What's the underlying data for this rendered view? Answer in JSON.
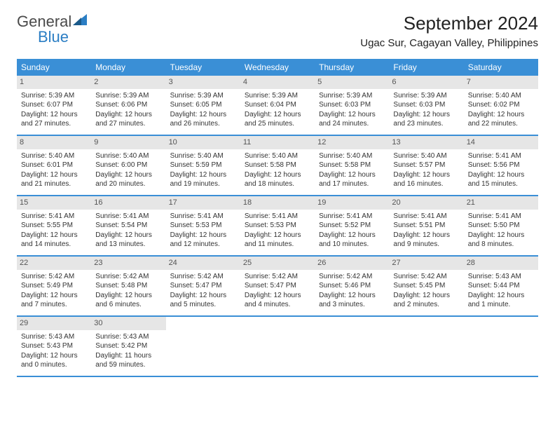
{
  "brand": {
    "text1": "General",
    "text2": "Blue"
  },
  "title": "September 2024",
  "location": "Ugac Sur, Cagayan Valley, Philippines",
  "colors": {
    "header_bg": "#3a8fd6",
    "header_text": "#ffffff",
    "daynum_bg": "#e6e6e6",
    "row_border": "#3a8fd6",
    "brand_gray": "#4a4a4a",
    "brand_blue": "#2b7ec4"
  },
  "day_names": [
    "Sunday",
    "Monday",
    "Tuesday",
    "Wednesday",
    "Thursday",
    "Friday",
    "Saturday"
  ],
  "weeks": [
    [
      {
        "num": "1",
        "sunrise": "Sunrise: 5:39 AM",
        "sunset": "Sunset: 6:07 PM",
        "d1": "Daylight: 12 hours",
        "d2": "and 27 minutes."
      },
      {
        "num": "2",
        "sunrise": "Sunrise: 5:39 AM",
        "sunset": "Sunset: 6:06 PM",
        "d1": "Daylight: 12 hours",
        "d2": "and 27 minutes."
      },
      {
        "num": "3",
        "sunrise": "Sunrise: 5:39 AM",
        "sunset": "Sunset: 6:05 PM",
        "d1": "Daylight: 12 hours",
        "d2": "and 26 minutes."
      },
      {
        "num": "4",
        "sunrise": "Sunrise: 5:39 AM",
        "sunset": "Sunset: 6:04 PM",
        "d1": "Daylight: 12 hours",
        "d2": "and 25 minutes."
      },
      {
        "num": "5",
        "sunrise": "Sunrise: 5:39 AM",
        "sunset": "Sunset: 6:03 PM",
        "d1": "Daylight: 12 hours",
        "d2": "and 24 minutes."
      },
      {
        "num": "6",
        "sunrise": "Sunrise: 5:39 AM",
        "sunset": "Sunset: 6:03 PM",
        "d1": "Daylight: 12 hours",
        "d2": "and 23 minutes."
      },
      {
        "num": "7",
        "sunrise": "Sunrise: 5:40 AM",
        "sunset": "Sunset: 6:02 PM",
        "d1": "Daylight: 12 hours",
        "d2": "and 22 minutes."
      }
    ],
    [
      {
        "num": "8",
        "sunrise": "Sunrise: 5:40 AM",
        "sunset": "Sunset: 6:01 PM",
        "d1": "Daylight: 12 hours",
        "d2": "and 21 minutes."
      },
      {
        "num": "9",
        "sunrise": "Sunrise: 5:40 AM",
        "sunset": "Sunset: 6:00 PM",
        "d1": "Daylight: 12 hours",
        "d2": "and 20 minutes."
      },
      {
        "num": "10",
        "sunrise": "Sunrise: 5:40 AM",
        "sunset": "Sunset: 5:59 PM",
        "d1": "Daylight: 12 hours",
        "d2": "and 19 minutes."
      },
      {
        "num": "11",
        "sunrise": "Sunrise: 5:40 AM",
        "sunset": "Sunset: 5:58 PM",
        "d1": "Daylight: 12 hours",
        "d2": "and 18 minutes."
      },
      {
        "num": "12",
        "sunrise": "Sunrise: 5:40 AM",
        "sunset": "Sunset: 5:58 PM",
        "d1": "Daylight: 12 hours",
        "d2": "and 17 minutes."
      },
      {
        "num": "13",
        "sunrise": "Sunrise: 5:40 AM",
        "sunset": "Sunset: 5:57 PM",
        "d1": "Daylight: 12 hours",
        "d2": "and 16 minutes."
      },
      {
        "num": "14",
        "sunrise": "Sunrise: 5:41 AM",
        "sunset": "Sunset: 5:56 PM",
        "d1": "Daylight: 12 hours",
        "d2": "and 15 minutes."
      }
    ],
    [
      {
        "num": "15",
        "sunrise": "Sunrise: 5:41 AM",
        "sunset": "Sunset: 5:55 PM",
        "d1": "Daylight: 12 hours",
        "d2": "and 14 minutes."
      },
      {
        "num": "16",
        "sunrise": "Sunrise: 5:41 AM",
        "sunset": "Sunset: 5:54 PM",
        "d1": "Daylight: 12 hours",
        "d2": "and 13 minutes."
      },
      {
        "num": "17",
        "sunrise": "Sunrise: 5:41 AM",
        "sunset": "Sunset: 5:53 PM",
        "d1": "Daylight: 12 hours",
        "d2": "and 12 minutes."
      },
      {
        "num": "18",
        "sunrise": "Sunrise: 5:41 AM",
        "sunset": "Sunset: 5:53 PM",
        "d1": "Daylight: 12 hours",
        "d2": "and 11 minutes."
      },
      {
        "num": "19",
        "sunrise": "Sunrise: 5:41 AM",
        "sunset": "Sunset: 5:52 PM",
        "d1": "Daylight: 12 hours",
        "d2": "and 10 minutes."
      },
      {
        "num": "20",
        "sunrise": "Sunrise: 5:41 AM",
        "sunset": "Sunset: 5:51 PM",
        "d1": "Daylight: 12 hours",
        "d2": "and 9 minutes."
      },
      {
        "num": "21",
        "sunrise": "Sunrise: 5:41 AM",
        "sunset": "Sunset: 5:50 PM",
        "d1": "Daylight: 12 hours",
        "d2": "and 8 minutes."
      }
    ],
    [
      {
        "num": "22",
        "sunrise": "Sunrise: 5:42 AM",
        "sunset": "Sunset: 5:49 PM",
        "d1": "Daylight: 12 hours",
        "d2": "and 7 minutes."
      },
      {
        "num": "23",
        "sunrise": "Sunrise: 5:42 AM",
        "sunset": "Sunset: 5:48 PM",
        "d1": "Daylight: 12 hours",
        "d2": "and 6 minutes."
      },
      {
        "num": "24",
        "sunrise": "Sunrise: 5:42 AM",
        "sunset": "Sunset: 5:47 PM",
        "d1": "Daylight: 12 hours",
        "d2": "and 5 minutes."
      },
      {
        "num": "25",
        "sunrise": "Sunrise: 5:42 AM",
        "sunset": "Sunset: 5:47 PM",
        "d1": "Daylight: 12 hours",
        "d2": "and 4 minutes."
      },
      {
        "num": "26",
        "sunrise": "Sunrise: 5:42 AM",
        "sunset": "Sunset: 5:46 PM",
        "d1": "Daylight: 12 hours",
        "d2": "and 3 minutes."
      },
      {
        "num": "27",
        "sunrise": "Sunrise: 5:42 AM",
        "sunset": "Sunset: 5:45 PM",
        "d1": "Daylight: 12 hours",
        "d2": "and 2 minutes."
      },
      {
        "num": "28",
        "sunrise": "Sunrise: 5:43 AM",
        "sunset": "Sunset: 5:44 PM",
        "d1": "Daylight: 12 hours",
        "d2": "and 1 minute."
      }
    ],
    [
      {
        "num": "29",
        "sunrise": "Sunrise: 5:43 AM",
        "sunset": "Sunset: 5:43 PM",
        "d1": "Daylight: 12 hours",
        "d2": "and 0 minutes."
      },
      {
        "num": "30",
        "sunrise": "Sunrise: 5:43 AM",
        "sunset": "Sunset: 5:42 PM",
        "d1": "Daylight: 11 hours",
        "d2": "and 59 minutes."
      },
      {
        "empty": true
      },
      {
        "empty": true
      },
      {
        "empty": true
      },
      {
        "empty": true
      },
      {
        "empty": true
      }
    ]
  ]
}
